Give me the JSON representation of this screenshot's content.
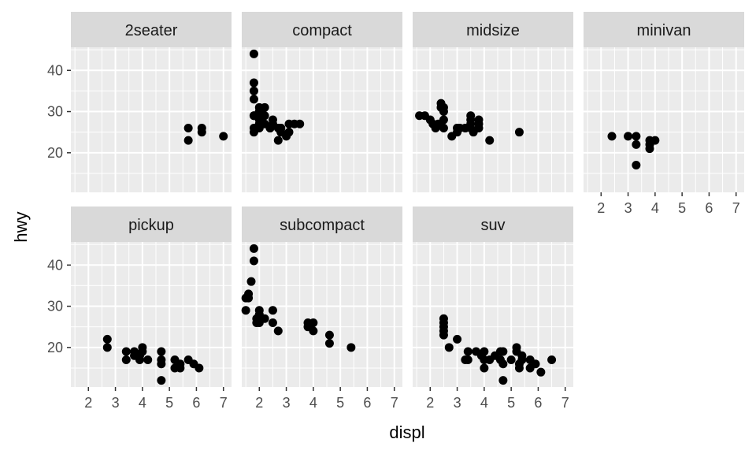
{
  "chart_data": {
    "type": "scatter",
    "title": "",
    "xlabel": "displ",
    "ylabel": "hwy",
    "xlim": [
      1.35,
      7.3
    ],
    "ylim": [
      10.4,
      45.6
    ],
    "xticks": [
      2,
      3,
      4,
      5,
      6,
      7
    ],
    "yticks": [
      20,
      30,
      40
    ],
    "grid": true,
    "colors": {
      "panel_bg": "#ebebeb",
      "strip_bg": "#d9d9d9",
      "grid": "#ffffff",
      "point": "#000000"
    },
    "panels": [
      {
        "name": "2seater",
        "points": [
          [
            5.7,
            26
          ],
          [
            5.7,
            23
          ],
          [
            6.2,
            26
          ],
          [
            6.2,
            25
          ],
          [
            7.0,
            24
          ]
        ]
      },
      {
        "name": "compact",
        "points": [
          [
            1.8,
            29
          ],
          [
            1.8,
            29
          ],
          [
            2.0,
            31
          ],
          [
            2.0,
            30
          ],
          [
            2.8,
            26
          ],
          [
            2.8,
            26
          ],
          [
            3.1,
            27
          ],
          [
            1.8,
            26
          ],
          [
            1.8,
            25
          ],
          [
            2.0,
            28
          ],
          [
            2.0,
            27
          ],
          [
            2.8,
            25
          ],
          [
            2.8,
            25
          ],
          [
            3.1,
            25
          ],
          [
            1.8,
            37
          ],
          [
            1.8,
            35
          ],
          [
            1.8,
            33
          ],
          [
            1.8,
            44
          ],
          [
            1.9,
            29
          ],
          [
            2.0,
            26
          ],
          [
            2.0,
            29
          ],
          [
            2.2,
            27
          ],
          [
            2.2,
            31
          ],
          [
            2.4,
            26
          ],
          [
            2.4,
            26
          ],
          [
            2.5,
            27
          ],
          [
            2.5,
            28
          ],
          [
            2.7,
            26
          ],
          [
            2.7,
            23
          ],
          [
            3.0,
            24
          ],
          [
            3.3,
            27
          ],
          [
            3.5,
            27
          ],
          [
            2.2,
            29
          ],
          [
            2.0,
            30
          ]
        ]
      },
      {
        "name": "midsize",
        "points": [
          [
            1.6,
            29
          ],
          [
            1.8,
            29
          ],
          [
            2.0,
            28
          ],
          [
            2.1,
            27
          ],
          [
            2.4,
            31
          ],
          [
            2.4,
            32
          ],
          [
            2.5,
            30
          ],
          [
            2.5,
            28
          ],
          [
            2.5,
            26
          ],
          [
            2.5,
            31
          ],
          [
            2.8,
            24
          ],
          [
            3.0,
            26
          ],
          [
            3.0,
            26
          ],
          [
            3.1,
            26
          ],
          [
            3.3,
            26
          ],
          [
            3.5,
            28
          ],
          [
            3.5,
            27
          ],
          [
            3.5,
            29
          ],
          [
            3.5,
            26
          ],
          [
            3.6,
            25
          ],
          [
            3.8,
            28
          ],
          [
            3.8,
            27
          ],
          [
            3.8,
            26
          ],
          [
            4.2,
            23
          ],
          [
            5.3,
            25
          ],
          [
            2.2,
            26
          ],
          [
            2.3,
            27
          ],
          [
            2.4,
            27
          ],
          [
            3.0,
            25
          ],
          [
            3.3,
            26
          ]
        ]
      },
      {
        "name": "minivan",
        "points": [
          [
            2.4,
            24
          ],
          [
            3.0,
            24
          ],
          [
            3.3,
            24
          ],
          [
            3.3,
            22
          ],
          [
            3.3,
            17
          ],
          [
            3.8,
            21
          ],
          [
            3.8,
            22
          ],
          [
            3.8,
            23
          ],
          [
            4.0,
            23
          ]
        ]
      },
      {
        "name": "pickup",
        "points": [
          [
            2.7,
            22
          ],
          [
            2.7,
            20
          ],
          [
            3.4,
            17
          ],
          [
            3.4,
            19
          ],
          [
            3.7,
            19
          ],
          [
            3.7,
            18
          ],
          [
            3.9,
            17
          ],
          [
            3.9,
            18
          ],
          [
            4.0,
            20
          ],
          [
            4.0,
            19
          ],
          [
            4.2,
            17
          ],
          [
            4.7,
            12
          ],
          [
            4.7,
            17
          ],
          [
            4.7,
            16
          ],
          [
            4.7,
            19
          ],
          [
            5.2,
            15
          ],
          [
            5.2,
            17
          ],
          [
            5.4,
            16
          ],
          [
            5.4,
            15
          ],
          [
            5.7,
            17
          ],
          [
            5.9,
            16
          ],
          [
            6.1,
            15
          ]
        ]
      },
      {
        "name": "subcompact",
        "points": [
          [
            1.5,
            29
          ],
          [
            1.5,
            32
          ],
          [
            1.6,
            33
          ],
          [
            1.6,
            32
          ],
          [
            1.7,
            36
          ],
          [
            1.8,
            41
          ],
          [
            1.8,
            44
          ],
          [
            1.9,
            27
          ],
          [
            1.9,
            26
          ],
          [
            2.0,
            28
          ],
          [
            2.0,
            29
          ],
          [
            2.0,
            26
          ],
          [
            2.2,
            27
          ],
          [
            2.5,
            26
          ],
          [
            2.5,
            29
          ],
          [
            2.7,
            24
          ],
          [
            3.8,
            26
          ],
          [
            3.8,
            25
          ],
          [
            4.0,
            26
          ],
          [
            4.0,
            24
          ],
          [
            4.6,
            23
          ],
          [
            4.6,
            21
          ],
          [
            5.4,
            20
          ]
        ]
      },
      {
        "name": "suv",
        "points": [
          [
            2.5,
            27
          ],
          [
            2.5,
            26
          ],
          [
            2.5,
            25
          ],
          [
            2.5,
            24
          ],
          [
            2.5,
            23
          ],
          [
            2.7,
            20
          ],
          [
            3.0,
            22
          ],
          [
            3.3,
            17
          ],
          [
            3.4,
            19
          ],
          [
            3.4,
            17
          ],
          [
            3.7,
            19
          ],
          [
            3.9,
            18
          ],
          [
            4.0,
            19
          ],
          [
            4.0,
            17
          ],
          [
            4.0,
            15
          ],
          [
            4.2,
            17
          ],
          [
            4.4,
            18
          ],
          [
            4.6,
            19
          ],
          [
            4.6,
            17
          ],
          [
            4.7,
            12
          ],
          [
            4.7,
            19
          ],
          [
            4.7,
            16
          ],
          [
            5.0,
            17
          ],
          [
            5.2,
            20
          ],
          [
            5.2,
            19
          ],
          [
            5.3,
            15
          ],
          [
            5.4,
            17
          ],
          [
            5.4,
            18
          ],
          [
            5.7,
            17
          ],
          [
            5.7,
            15
          ],
          [
            5.9,
            16
          ],
          [
            6.1,
            14
          ],
          [
            6.5,
            17
          ],
          [
            5.3,
            16
          ]
        ]
      }
    ]
  }
}
